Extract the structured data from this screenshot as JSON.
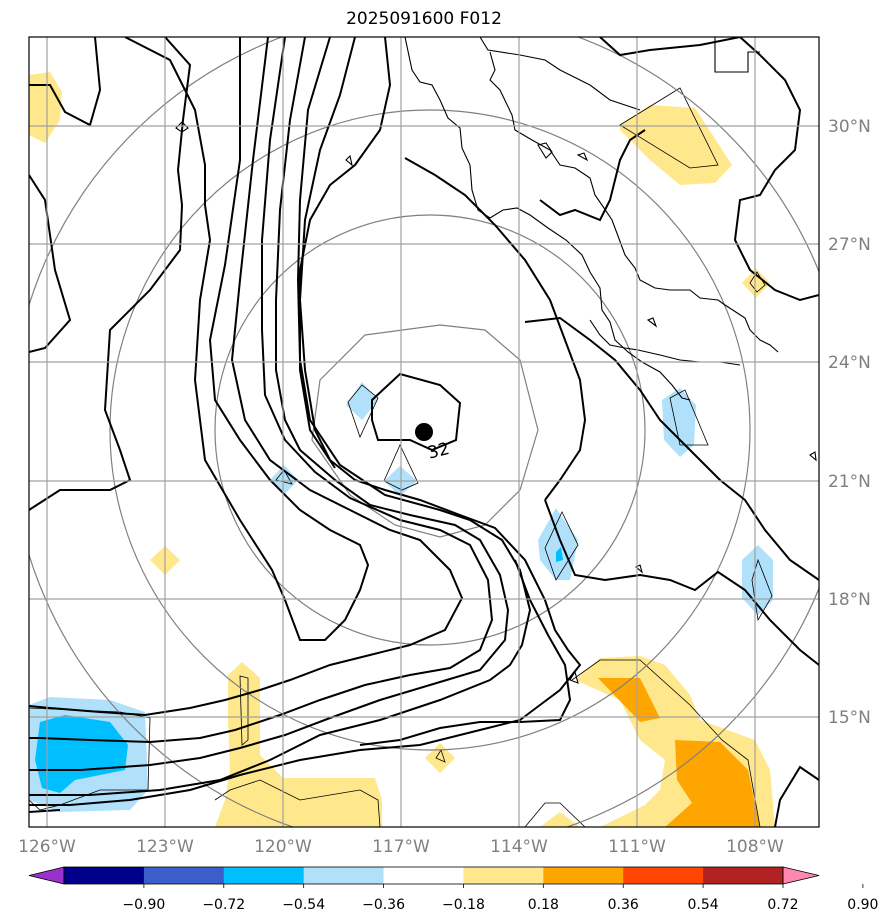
{
  "title": "2025091600 F012",
  "map": {
    "lon_labels": [
      "126°W",
      "123°W",
      "120°W",
      "117°W",
      "114°W",
      "111°W",
      "108°W"
    ],
    "lat_labels": [
      "30°N",
      "27°N",
      "24°N",
      "21°N",
      "18°N",
      "15°N"
    ],
    "contour_label": "32",
    "colors": {
      "axis_label": "#808080",
      "grid": "#a0a0a0",
      "contour": "#000000",
      "range_ring": "#808080"
    }
  },
  "colorbar": {
    "tick_labels": [
      "−0.90",
      "−0.72",
      "−0.54",
      "−0.36",
      "−0.18",
      "0.18",
      "0.36",
      "0.54",
      "0.72",
      "0.90"
    ],
    "colors": [
      "#9932cc",
      "#00008b",
      "#3a5fcd",
      "#00bfff",
      "#b0e0fa",
      "#ffffff",
      "#ffe88c",
      "#ffa500",
      "#ff4500",
      "#b22222",
      "#ff88b0"
    ]
  }
}
